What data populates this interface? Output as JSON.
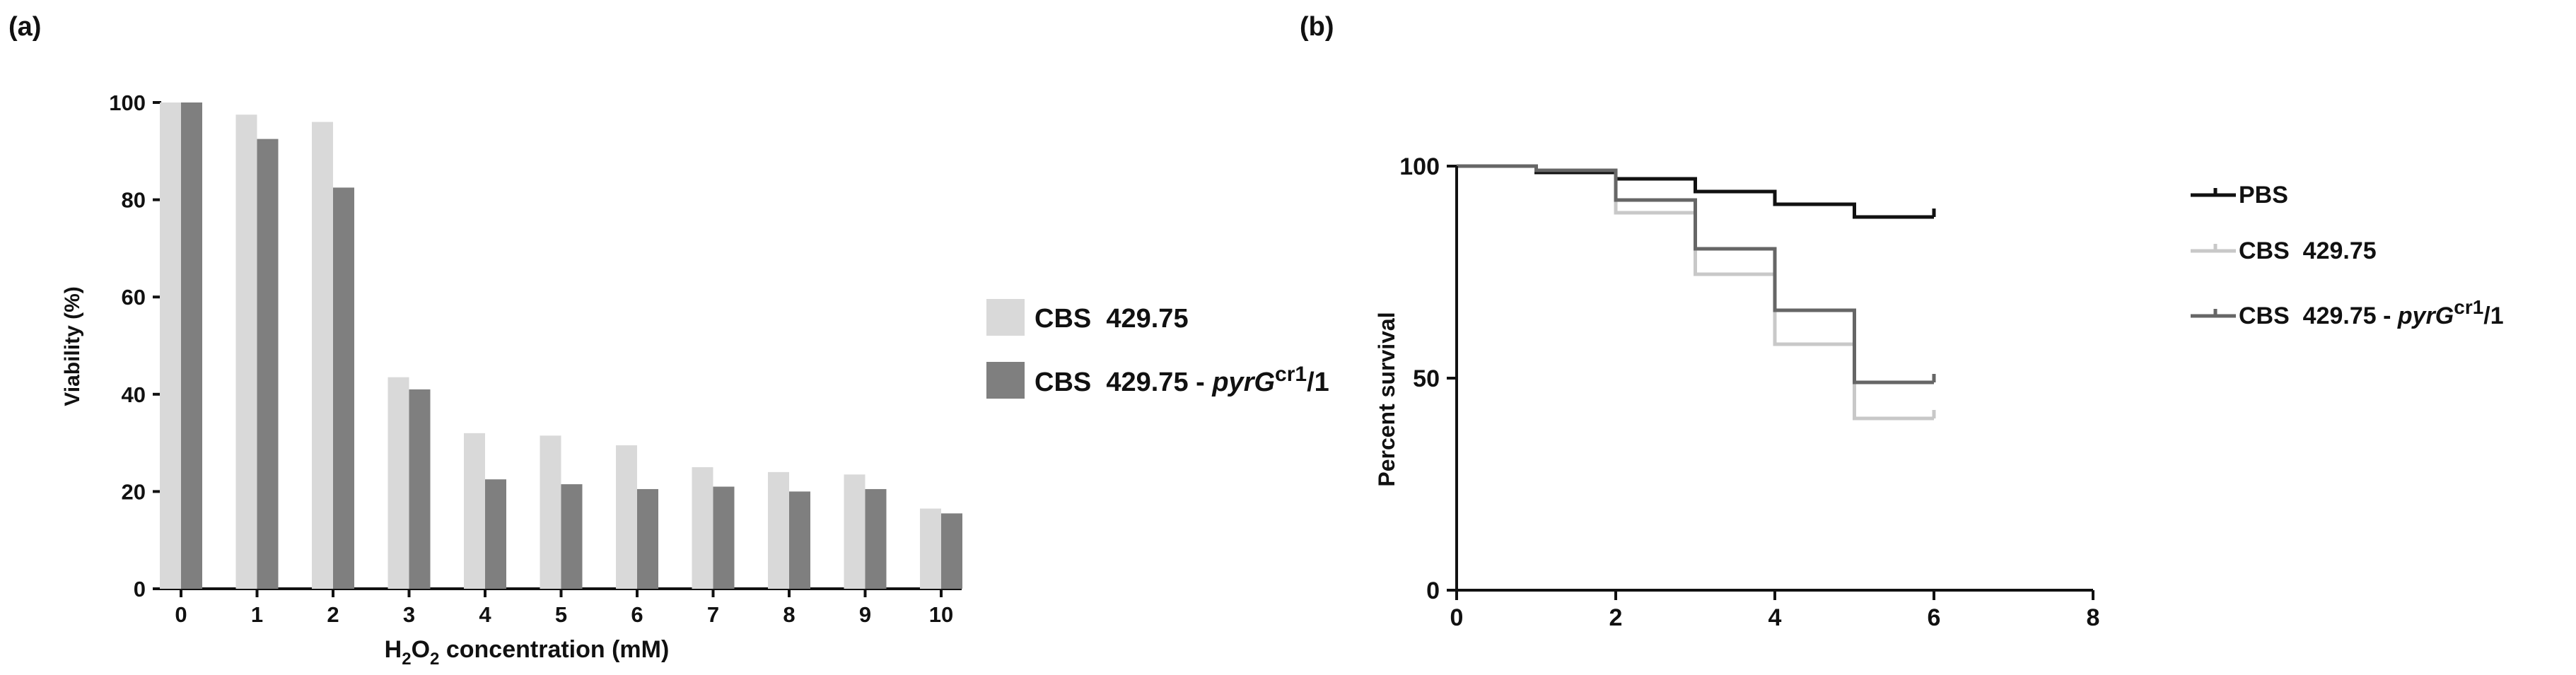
{
  "chart_data": [
    {
      "panel_label": "(a)",
      "type": "bar",
      "title": "",
      "xlabel": "H2O2 concentration (mM)",
      "xlabel_parts": {
        "pre": "H",
        "sub1": "2",
        "mid": "O",
        "sub2": "2",
        "post": " concentration (mM)"
      },
      "ylabel": "Viability (%)",
      "ylim": [
        0,
        100
      ],
      "yticks": [
        0,
        20,
        40,
        60,
        80,
        100
      ],
      "categories": [
        "0",
        "1",
        "2",
        "3",
        "4",
        "5",
        "6",
        "7",
        "8",
        "9",
        "10"
      ],
      "series": [
        {
          "name": "CBS  429.75",
          "color": "#d9d9d9",
          "values": [
            100,
            97.5,
            96,
            43.5,
            32,
            31.5,
            29.5,
            25,
            24,
            23.5,
            16.5
          ]
        },
        {
          "name": "CBS  429.75 - pyrGcr1/1",
          "name_parts": {
            "pre": "CBS  429.75 - ",
            "italic": "pyrG",
            "sup": "cr1",
            "post": "/1"
          },
          "color": "#7f7f7f",
          "values": [
            100,
            92.5,
            82.5,
            41,
            22.5,
            21.5,
            20.5,
            21,
            20,
            20.5,
            15.5
          ]
        }
      ],
      "grid": false,
      "legend_position": "right"
    },
    {
      "panel_label": "(b)",
      "type": "line",
      "subtype": "kaplan-meier step",
      "title": "",
      "xlabel": "",
      "ylabel": "Percent survival",
      "xlim": [
        0,
        8
      ],
      "ylim": [
        0,
        100
      ],
      "xticks": [
        0,
        2,
        4,
        6,
        8
      ],
      "yticks": [
        0,
        50,
        100
      ],
      "series": [
        {
          "name": "PBS",
          "color": "#111111",
          "x": [
            0,
            1,
            2,
            3,
            4,
            5,
            6
          ],
          "y": [
            100,
            98.5,
            97,
            94,
            91,
            88,
            88
          ]
        },
        {
          "name": "CBS  429.75",
          "color": "#c8c8c8",
          "x": [
            0,
            1,
            2,
            3,
            4,
            5,
            6
          ],
          "y": [
            100,
            99,
            89,
            74.5,
            58,
            40.5,
            40.5
          ]
        },
        {
          "name": "CBS  429.75 - pyrGcr1/1",
          "name_parts": {
            "pre": "CBS  429.75 - ",
            "italic": "pyrG",
            "sup": "cr1",
            "post": "/1"
          },
          "color": "#666666",
          "x": [
            0,
            1,
            2,
            3,
            4,
            5,
            6
          ],
          "y": [
            100,
            99,
            92,
            80.5,
            66,
            49,
            49
          ]
        }
      ],
      "grid": false,
      "legend_position": "right"
    }
  ]
}
